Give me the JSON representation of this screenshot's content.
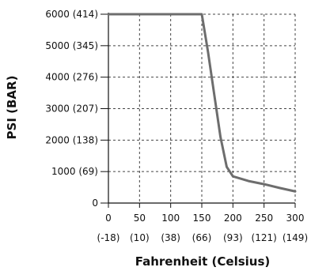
{
  "chart_data": {
    "type": "line",
    "title": "",
    "xlabel": "Fahrenheit (Celsius)",
    "ylabel": "PSI (BAR)",
    "xlim": [
      0,
      300
    ],
    "ylim": [
      0,
      6000
    ],
    "grid": true,
    "colors": {
      "line": "#6d6d6d",
      "grid": "#444444",
      "axis": "#111111"
    },
    "x_ticks": [
      {
        "value": 0,
        "line1": "0",
        "line2": "(-18)"
      },
      {
        "value": 50,
        "line1": "50",
        "line2": "(10)"
      },
      {
        "value": 100,
        "line1": "100",
        "line2": "(38)"
      },
      {
        "value": 150,
        "line1": "150",
        "line2": "(66)"
      },
      {
        "value": 200,
        "line1": "200",
        "line2": "(93)"
      },
      {
        "value": 250,
        "line1": "250",
        "line2": "(121)"
      },
      {
        "value": 300,
        "line1": "300",
        "line2": "(149)"
      }
    ],
    "y_ticks": [
      {
        "value": 0,
        "label": "0"
      },
      {
        "value": 1000,
        "label": "1000 (69)"
      },
      {
        "value": 2000,
        "label": "2000 (138)"
      },
      {
        "value": 3000,
        "label": "3000 (207)"
      },
      {
        "value": 4000,
        "label": "4000 (276)"
      },
      {
        "value": 5000,
        "label": "5000 (345)"
      },
      {
        "value": 6000,
        "label": "6000 (414)"
      }
    ],
    "series": [
      {
        "x": [
          0,
          150,
          160,
          170,
          180,
          190,
          200,
          225,
          250,
          275,
          300
        ],
        "y": [
          6000,
          6000,
          4800,
          3450,
          2100,
          1150,
          850,
          700,
          600,
          480,
          370
        ]
      }
    ]
  }
}
